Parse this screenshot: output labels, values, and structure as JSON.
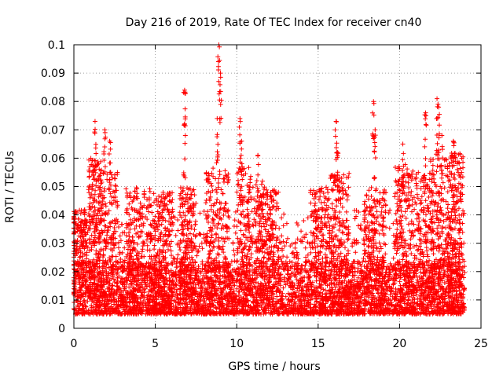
{
  "chart_data": {
    "type": "scatter",
    "title": "Day 216 of 2019, Rate Of TEC Index for receiver cn40",
    "xlabel": "GPS time / hours",
    "ylabel": "ROTI / TECUs",
    "xlim": [
      0,
      25
    ],
    "ylim": [
      0,
      0.1
    ],
    "x_ticks": [
      "0",
      "5",
      "10",
      "15",
      "20",
      "25"
    ],
    "y_ticks": [
      "0",
      "0.01",
      "0.02",
      "0.03",
      "0.04",
      "0.05",
      "0.06",
      "0.07",
      "0.08",
      "0.09",
      "0.1"
    ],
    "grid": true,
    "marker": "+",
    "series_color": "#ff0000",
    "x_range_of_data": [
      0,
      24
    ],
    "typical_band": [
      0.005,
      0.03
    ],
    "peaks": [
      {
        "x": 1.3,
        "y": 0.073
      },
      {
        "x": 1.9,
        "y": 0.07
      },
      {
        "x": 2.2,
        "y": 0.066
      },
      {
        "x": 6.8,
        "y": 0.084
      },
      {
        "x": 6.8,
        "y": 0.072
      },
      {
        "x": 8.8,
        "y": 0.074
      },
      {
        "x": 8.9,
        "y": 0.1
      },
      {
        "x": 9.0,
        "y": 0.09
      },
      {
        "x": 10.2,
        "y": 0.074
      },
      {
        "x": 10.3,
        "y": 0.066
      },
      {
        "x": 11.3,
        "y": 0.061
      },
      {
        "x": 16.1,
        "y": 0.073
      },
      {
        "x": 16.2,
        "y": 0.062
      },
      {
        "x": 18.4,
        "y": 0.08
      },
      {
        "x": 18.5,
        "y": 0.07
      },
      {
        "x": 20.2,
        "y": 0.065
      },
      {
        "x": 21.6,
        "y": 0.076
      },
      {
        "x": 22.3,
        "y": 0.081
      },
      {
        "x": 22.4,
        "y": 0.078
      },
      {
        "x": 22.6,
        "y": 0.068
      },
      {
        "x": 23.3,
        "y": 0.066
      }
    ],
    "activity_bursts": [
      {
        "x": 0.3,
        "w": 0.5,
        "top": 0.042
      },
      {
        "x": 1.3,
        "w": 0.4,
        "top": 0.06
      },
      {
        "x": 2.1,
        "w": 0.6,
        "top": 0.055
      },
      {
        "x": 4.0,
        "w": 0.8,
        "top": 0.05
      },
      {
        "x": 5.5,
        "w": 0.6,
        "top": 0.048
      },
      {
        "x": 7.0,
        "w": 0.5,
        "top": 0.05
      },
      {
        "x": 8.8,
        "w": 0.7,
        "top": 0.058
      },
      {
        "x": 10.8,
        "w": 0.8,
        "top": 0.057
      },
      {
        "x": 12.0,
        "w": 0.6,
        "top": 0.05
      },
      {
        "x": 15.1,
        "w": 0.6,
        "top": 0.05
      },
      {
        "x": 16.3,
        "w": 0.6,
        "top": 0.055
      },
      {
        "x": 18.5,
        "w": 0.7,
        "top": 0.05
      },
      {
        "x": 20.3,
        "w": 0.6,
        "top": 0.058
      },
      {
        "x": 21.5,
        "w": 0.6,
        "top": 0.055
      },
      {
        "x": 22.5,
        "w": 0.6,
        "top": 0.06
      },
      {
        "x": 23.5,
        "w": 0.4,
        "top": 0.062
      }
    ]
  }
}
